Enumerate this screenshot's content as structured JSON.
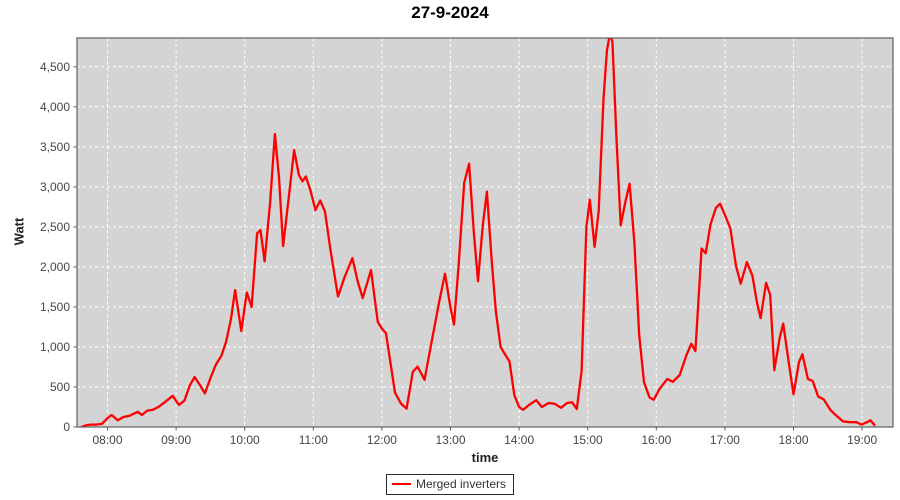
{
  "chart_title": "27-9-2024",
  "legend": {
    "items": [
      {
        "label": "Merged inverters",
        "color": "#ff0000"
      }
    ]
  },
  "chart_data": {
    "type": "line",
    "title": "27-9-2024",
    "xlabel": "time",
    "ylabel": "Watt",
    "grid": true,
    "legend_position": "bottom",
    "plot_background": "#d4d4d4",
    "grid_color": "#ffffff",
    "border_color": "#5f5f5f",
    "tick_color": "#5f5f5f",
    "xlim": [
      7.555,
      19.45
    ],
    "ylim": [
      0,
      4860
    ],
    "x_tick_hours": [
      8,
      9,
      10,
      11,
      12,
      13,
      14,
      15,
      16,
      17,
      18,
      19
    ],
    "x_tick_labels": [
      "08:00",
      "09:00",
      "10:00",
      "11:00",
      "12:00",
      "13:00",
      "14:00",
      "15:00",
      "16:00",
      "17:00",
      "18:00",
      "19:00"
    ],
    "y_tick_values": [
      0,
      500,
      1000,
      1500,
      2000,
      2500,
      3000,
      3500,
      4000,
      4500
    ],
    "y_tick_labels": [
      "0",
      "500",
      "1,000",
      "1,500",
      "2,000",
      "2,500",
      "3,000",
      "3,500",
      "4,000",
      "4,500"
    ],
    "series": [
      {
        "name": "Merged inverters",
        "color": "#ff0000",
        "x": [
          7.62,
          7.68,
          7.75,
          7.83,
          7.92,
          8.0,
          8.06,
          8.15,
          8.23,
          8.32,
          8.44,
          8.5,
          8.58,
          8.66,
          8.75,
          8.85,
          8.95,
          9.04,
          9.12,
          9.2,
          9.27,
          9.35,
          9.42,
          9.5,
          9.58,
          9.66,
          9.73,
          9.8,
          9.86,
          9.95,
          10.03,
          10.1,
          10.18,
          10.23,
          10.29,
          10.37,
          10.44,
          10.5,
          10.56,
          10.64,
          10.72,
          10.79,
          10.84,
          10.89,
          10.96,
          11.03,
          11.1,
          11.17,
          11.25,
          11.36,
          11.45,
          11.57,
          11.65,
          11.72,
          11.84,
          11.94,
          12.0,
          12.06,
          12.19,
          12.28,
          12.36,
          12.45,
          12.52,
          12.62,
          12.73,
          12.84,
          12.92,
          13.0,
          13.05,
          13.12,
          13.2,
          13.27,
          13.34,
          13.4,
          13.47,
          13.53,
          13.6,
          13.66,
          13.73,
          13.8,
          13.86,
          13.93,
          14.0,
          14.06,
          14.15,
          14.25,
          14.33,
          14.43,
          14.52,
          14.61,
          14.7,
          14.77,
          14.84,
          14.91,
          14.98,
          15.03,
          15.1,
          15.16,
          15.23,
          15.28,
          15.32,
          15.36,
          15.42,
          15.48,
          15.55,
          15.61,
          15.68,
          15.75,
          15.82,
          15.9,
          15.96,
          16.05,
          16.16,
          16.24,
          16.34,
          16.44,
          16.51,
          16.57,
          16.66,
          16.72,
          16.79,
          16.87,
          16.93,
          17.0,
          17.08,
          17.16,
          17.23,
          17.32,
          17.4,
          17.47,
          17.52,
          17.6,
          17.66,
          17.72,
          17.8,
          17.85,
          17.93,
          18.0,
          18.08,
          18.13,
          18.21,
          18.28,
          18.36,
          18.44,
          18.54,
          18.62,
          18.72,
          18.82,
          18.92,
          18.99,
          19.07,
          19.12,
          19.18
        ],
        "y": [
          0,
          20,
          30,
          30,
          40,
          110,
          150,
          85,
          125,
          140,
          190,
          150,
          205,
          215,
          255,
          320,
          390,
          275,
          330,
          520,
          625,
          520,
          420,
          610,
          780,
          890,
          1070,
          1350,
          1710,
          1200,
          1680,
          1500,
          2420,
          2460,
          2070,
          2800,
          3660,
          3120,
          2260,
          2850,
          3460,
          3150,
          3070,
          3130,
          2950,
          2710,
          2830,
          2690,
          2210,
          1630,
          1860,
          2110,
          1810,
          1610,
          1960,
          1310,
          1230,
          1170,
          430,
          290,
          230,
          690,
          755,
          590,
          1090,
          1590,
          1915,
          1490,
          1280,
          2050,
          3050,
          3290,
          2420,
          1820,
          2520,
          2940,
          2080,
          1450,
          1000,
          900,
          820,
          400,
          250,
          215,
          280,
          335,
          250,
          300,
          290,
          240,
          300,
          310,
          225,
          700,
          2500,
          2840,
          2250,
          2700,
          4100,
          4700,
          4900,
          4820,
          3600,
          2520,
          2820,
          3040,
          2300,
          1150,
          560,
          370,
          340,
          480,
          600,
          565,
          650,
          900,
          1040,
          950,
          2230,
          2170,
          2530,
          2740,
          2790,
          2650,
          2480,
          2020,
          1790,
          2060,
          1890,
          1540,
          1360,
          1800,
          1650,
          710,
          1120,
          1290,
          810,
          410,
          810,
          910,
          600,
          575,
          380,
          345,
          210,
          145,
          70,
          60,
          60,
          30,
          60,
          85,
          25
        ]
      }
    ]
  }
}
